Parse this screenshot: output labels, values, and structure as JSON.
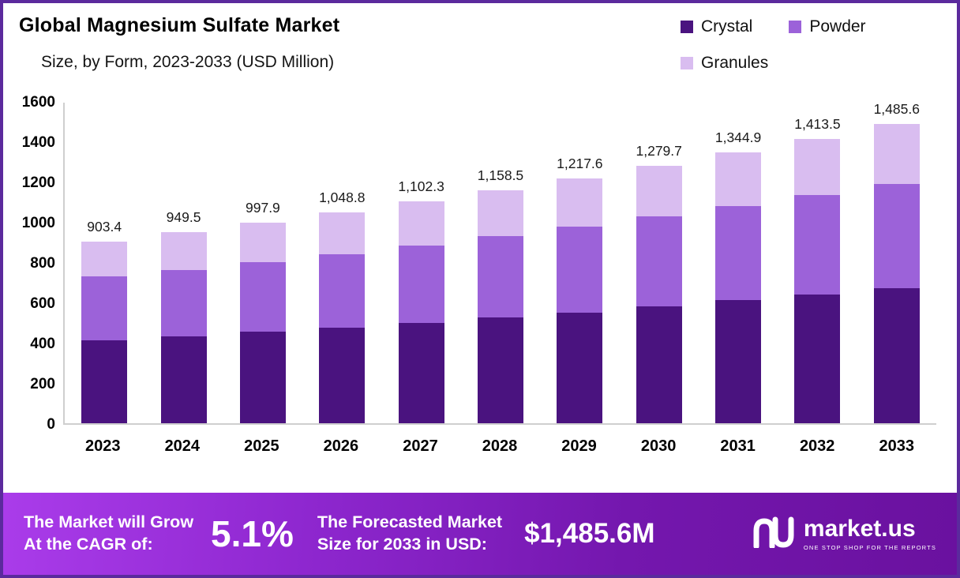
{
  "header": {
    "title": "Global Magnesium Sulfate Market",
    "subtitle": "Size, by Form, 2023-2033 (USD Million)"
  },
  "chart_data": {
    "type": "bar",
    "stacked": true,
    "title": "Global Magnesium Sulfate Market Size, by Form, 2023-2033 (USD Million)",
    "xlabel": "",
    "ylabel": "USD Million",
    "ylim": [
      0,
      1600
    ],
    "ytick_step": 200,
    "grid": false,
    "legend_position": "top-right",
    "categories": [
      "2023",
      "2024",
      "2025",
      "2026",
      "2027",
      "2028",
      "2029",
      "2030",
      "2031",
      "2032",
      "2033"
    ],
    "series": [
      {
        "name": "Crystal",
        "color": "#4a137f",
        "values": [
          410,
          430,
          455,
          475,
          500,
          525,
          550,
          580,
          610,
          640,
          670
        ]
      },
      {
        "name": "Powder",
        "color": "#9c62d9",
        "values": [
          320,
          330,
          345,
          365,
          382,
          405,
          425,
          448,
          470,
          495,
          520
        ]
      },
      {
        "name": "Granules",
        "color": "#d9bdf0",
        "values": [
          173.4,
          189.5,
          197.9,
          208.8,
          220.3,
          228.5,
          242.6,
          251.7,
          264.9,
          278.5,
          295.6
        ]
      }
    ],
    "totals": [
      903.4,
      949.5,
      997.9,
      1048.8,
      1102.3,
      1158.5,
      1217.6,
      1279.7,
      1344.9,
      1413.5,
      1485.6
    ],
    "totals_labels": [
      "903.4",
      "949.5",
      "997.9",
      "1,048.8",
      "1,102.3",
      "1,158.5",
      "1,217.6",
      "1,279.7",
      "1,344.9",
      "1,413.5",
      "1,485.6"
    ]
  },
  "banner": {
    "cagr_label_line1": "The Market will Grow",
    "cagr_label_line2": "At the CAGR of:",
    "cagr_value": "5.1%",
    "forecast_label_line1": "The Forecasted Market",
    "forecast_label_line2": "Size for 2033 in USD:",
    "forecast_value": "$1,485.6M",
    "brand": {
      "name": "market.us",
      "tagline": "ONE STOP SHOP FOR THE REPORTS"
    }
  },
  "colors": {
    "frame_border": "#5b2a9d",
    "banner_gradient_start": "#aa3cea",
    "banner_gradient_end": "#6a119f",
    "crystal": "#4a137f",
    "powder": "#9c62d9",
    "granules": "#d9bdf0"
  }
}
